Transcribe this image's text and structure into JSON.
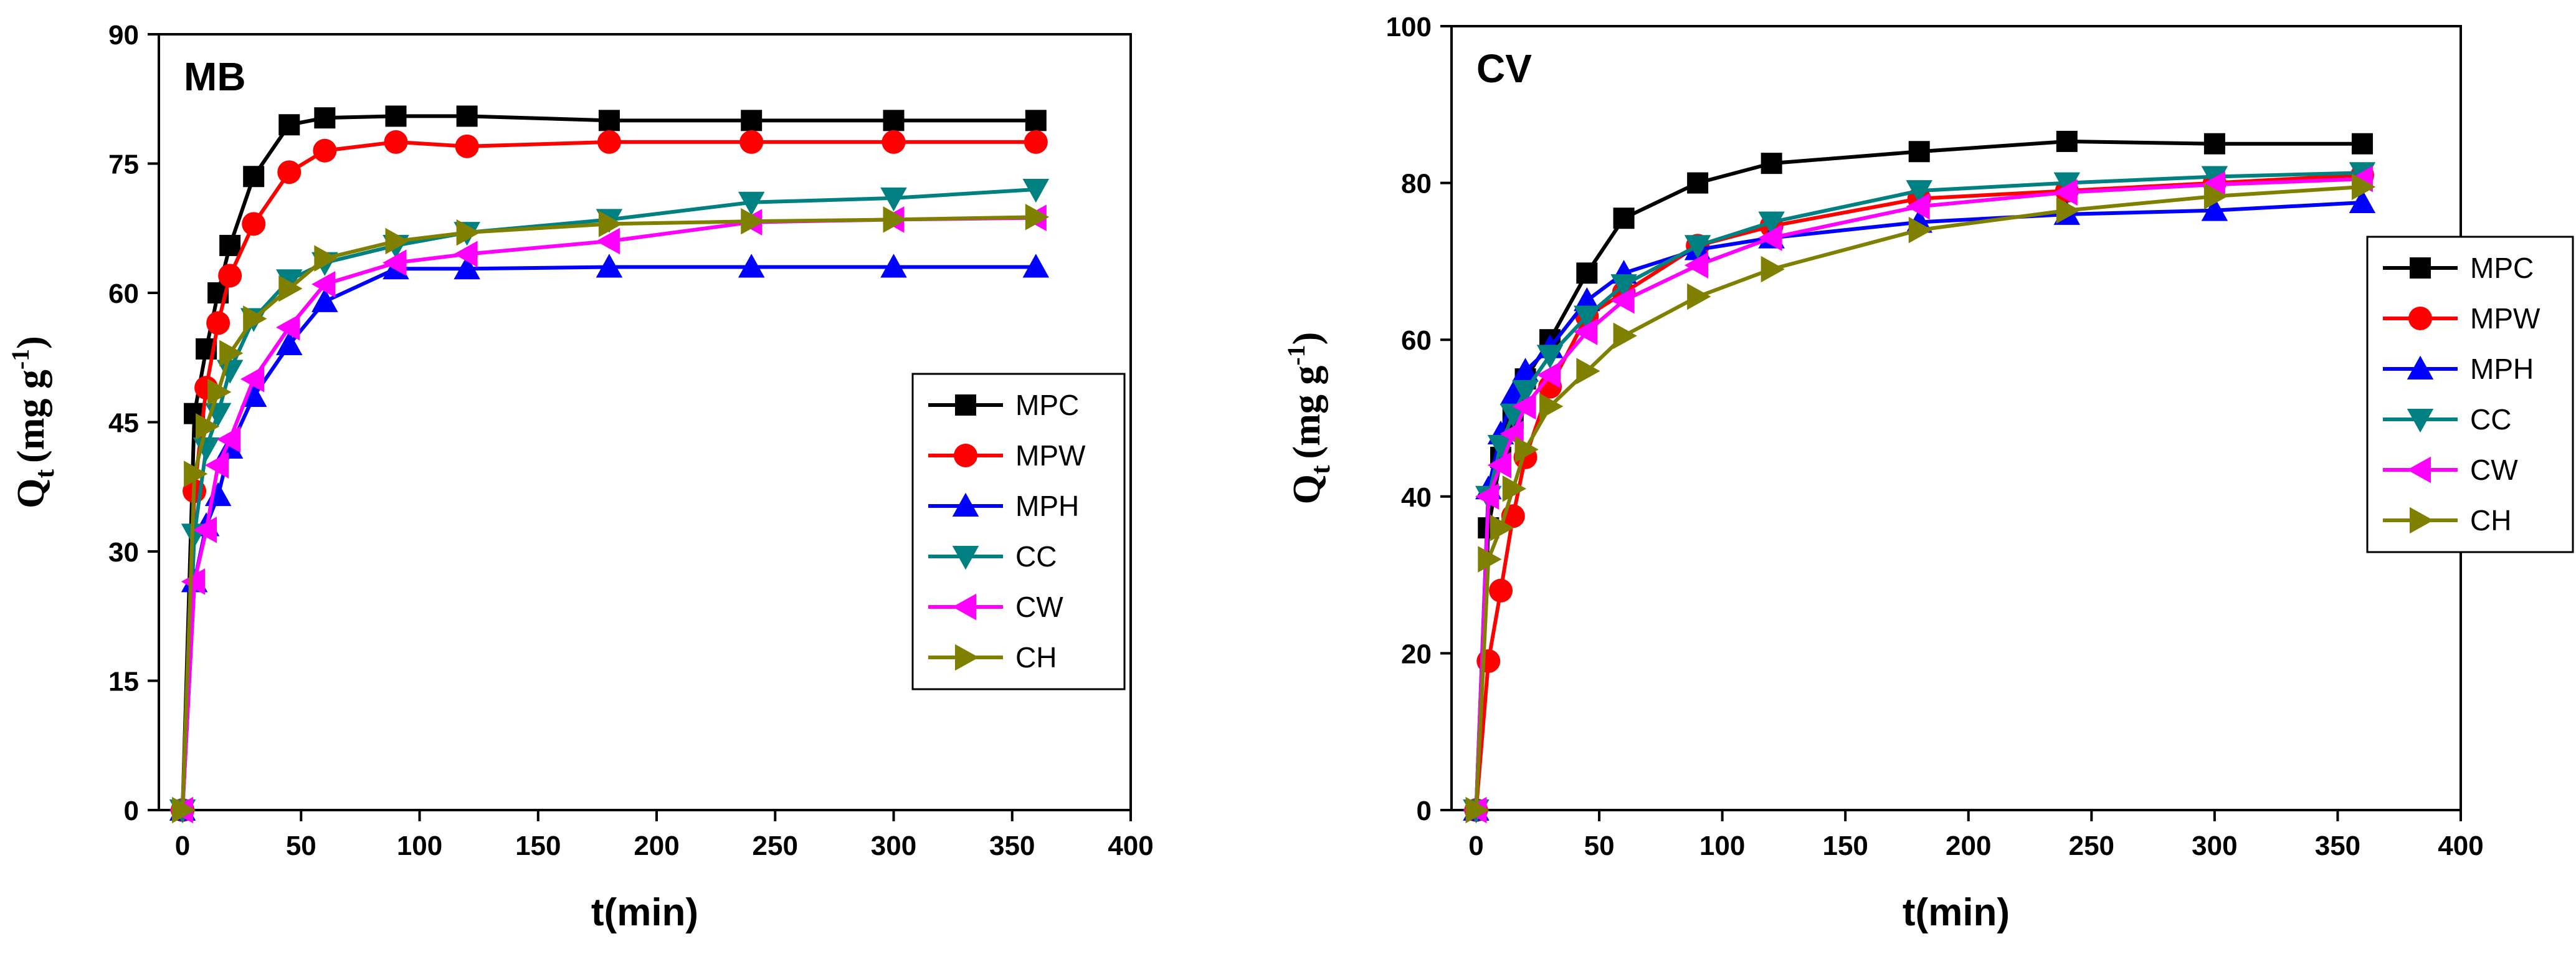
{
  "chart_data": [
    {
      "type": "line",
      "title": "MB",
      "xlabel": "t(min)",
      "ylabel_main": "Q",
      "ylabel_sub": "t",
      "ylabel_units": "(mg g",
      "ylabel_exp": "-1",
      "ylabel_close": ")",
      "xlim": [
        -10,
        400
      ],
      "ylim": [
        0,
        90
      ],
      "xticks": [
        0,
        50,
        100,
        150,
        200,
        250,
        300,
        350,
        400
      ],
      "yticks": [
        0,
        15,
        30,
        45,
        60,
        75,
        90
      ],
      "legend_position": "right-middle",
      "x": [
        0,
        5,
        10,
        15,
        20,
        30,
        45,
        60,
        90,
        120,
        180,
        240,
        300,
        360
      ],
      "series": [
        {
          "name": "MPC",
          "color": "#000000",
          "marker": "square",
          "values": [
            0,
            46,
            53.5,
            60,
            65.5,
            73.5,
            79.5,
            80.3,
            80.5,
            80.5,
            80,
            80,
            80,
            80
          ]
        },
        {
          "name": "MPW",
          "color": "#ff0000",
          "marker": "circle",
          "values": [
            0,
            37,
            49,
            56.5,
            62,
            68,
            74,
            76.5,
            77.5,
            77,
            77.5,
            77.5,
            77.5,
            77.5
          ]
        },
        {
          "name": "MPH",
          "color": "#0000ff",
          "marker": "triangle-up",
          "values": [
            0,
            26.5,
            33,
            36.5,
            42,
            48,
            54,
            59,
            62.8,
            62.8,
            63,
            63,
            63,
            63
          ]
        },
        {
          "name": "CC",
          "color": "#008080",
          "marker": "triangle-down",
          "values": [
            0,
            32,
            42,
            46,
            51,
            57,
            61.5,
            63.5,
            65.5,
            67,
            68.5,
            70.5,
            71,
            72
          ]
        },
        {
          "name": "CW",
          "color": "#ff00ff",
          "marker": "triangle-left",
          "values": [
            0,
            26.5,
            32.5,
            40,
            43,
            50,
            56,
            61,
            63.5,
            64.5,
            66,
            68.2,
            68.5,
            68.7
          ]
        },
        {
          "name": "CH",
          "color": "#808000",
          "marker": "triangle-right",
          "values": [
            0,
            39,
            44.5,
            48.5,
            53,
            57,
            60.5,
            64,
            66,
            67,
            68,
            68.3,
            68.5,
            68.8
          ]
        }
      ]
    },
    {
      "type": "line",
      "title": "CV",
      "xlabel": "t(min)",
      "ylabel_main": "Q",
      "ylabel_sub": "t",
      "ylabel_units": "(mg g",
      "ylabel_exp": "-1",
      "ylabel_close": ")",
      "xlim": [
        -10,
        400
      ],
      "ylim": [
        0,
        100
      ],
      "xticks": [
        0,
        50,
        100,
        150,
        200,
        250,
        300,
        350,
        400
      ],
      "yticks": [
        0,
        20,
        40,
        60,
        80,
        100
      ],
      "legend_position": "right-upper",
      "x": [
        0,
        5,
        10,
        15,
        20,
        30,
        45,
        60,
        90,
        120,
        180,
        240,
        300,
        360
      ],
      "series": [
        {
          "name": "MPC",
          "color": "#000000",
          "marker": "square",
          "values": [
            0,
            36,
            45,
            50,
            55,
            60,
            68.5,
            75.5,
            80,
            82.5,
            84,
            85.3,
            85,
            85
          ]
        },
        {
          "name": "MPW",
          "color": "#ff0000",
          "marker": "circle",
          "values": [
            0,
            19,
            28,
            37.5,
            45,
            54,
            63,
            66,
            72,
            74.5,
            78,
            79,
            80,
            81
          ]
        },
        {
          "name": "MPH",
          "color": "#0000ff",
          "marker": "triangle-up",
          "values": [
            0,
            41,
            48,
            53,
            56,
            59,
            65,
            68.5,
            71.5,
            73,
            75,
            76,
            76.5,
            77.5
          ]
        },
        {
          "name": "CC",
          "color": "#008080",
          "marker": "triangle-down",
          "values": [
            0,
            40,
            46.5,
            50.5,
            53.5,
            58,
            63,
            67,
            72,
            75,
            79,
            80,
            80.8,
            81.3
          ]
        },
        {
          "name": "CW",
          "color": "#ff00ff",
          "marker": "triangle-left",
          "values": [
            0,
            40,
            44,
            48,
            51.5,
            55.5,
            61,
            65,
            69.5,
            73,
            77,
            78.8,
            79.8,
            80.5
          ]
        },
        {
          "name": "CH",
          "color": "#808000",
          "marker": "triangle-right",
          "values": [
            0,
            32,
            36,
            41,
            46,
            51.5,
            56,
            60.5,
            65.5,
            69,
            74,
            76.5,
            78.3,
            79.5
          ]
        }
      ]
    }
  ]
}
